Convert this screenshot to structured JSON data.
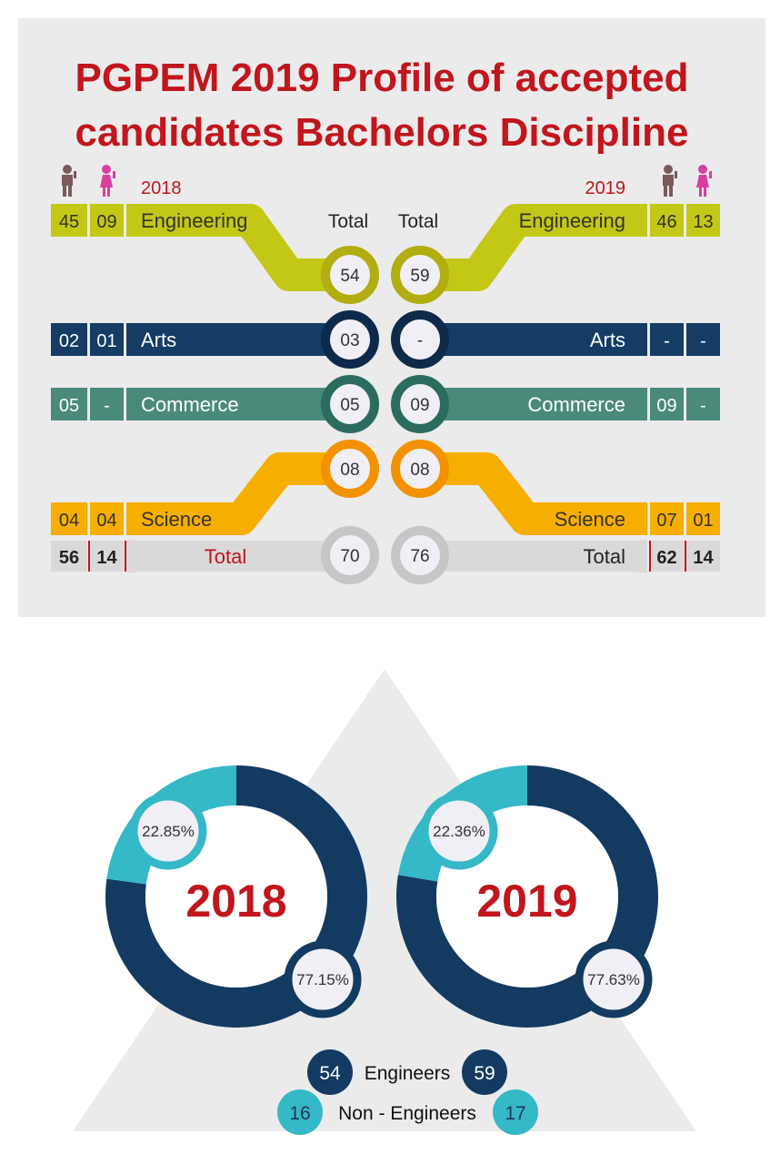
{
  "title_line1": "PGPEM 2019 Profile of accepted",
  "title_line2": "candidates Bachelors Discipline",
  "colors": {
    "title": "#c0161c",
    "engineering": "#c3c716",
    "engineering_ring": "#b2ad10",
    "arts": "#143c64",
    "arts_ring": "#0e2a4a",
    "commerce": "#4a8a7a",
    "commerce_ring": "#2b6c5e",
    "science": "#f6ae00",
    "science_ring": "#f39200",
    "total": "#d9d9d9",
    "total_ring": "#c6c6c6",
    "male_icon": "#7a5a5a",
    "female_icon": "#d63fa0",
    "engineers": "#133b62",
    "non_engineers": "#35b8c8"
  },
  "icons": [
    "male-person-icon",
    "female-person-icon"
  ],
  "chart_data": [
    {
      "type": "table",
      "columns_header": "Total",
      "years": [
        {
          "year": "2018",
          "rows": [
            {
              "discipline": "Engineering",
              "male": "45",
              "female": "09",
              "total": "54"
            },
            {
              "discipline": "Arts",
              "male": "02",
              "female": "01",
              "total": "03"
            },
            {
              "discipline": "Commerce",
              "male": "05",
              "female": "-",
              "total": "05"
            },
            {
              "discipline": "Science",
              "male": "04",
              "female": "04",
              "total": "08"
            },
            {
              "discipline": "Total",
              "male": "56",
              "female": "14",
              "total": "70"
            }
          ]
        },
        {
          "year": "2019",
          "rows": [
            {
              "discipline": "Engineering",
              "male": "46",
              "female": "13",
              "total": "59"
            },
            {
              "discipline": "Arts",
              "male": "-",
              "female": "-",
              "total": "-"
            },
            {
              "discipline": "Commerce",
              "male": "09",
              "female": "-",
              "total": "09"
            },
            {
              "discipline": "Science",
              "male": "07",
              "female": "01",
              "total": "08"
            },
            {
              "discipline": "Total",
              "male": "62",
              "female": "14",
              "total": "76"
            }
          ]
        }
      ]
    },
    {
      "type": "pie",
      "donuts": [
        {
          "label": "2018",
          "slices": [
            {
              "value": 77.15,
              "label": "77.15%"
            },
            {
              "value": 22.85,
              "label": "22.85%"
            }
          ]
        },
        {
          "label": "2019",
          "slices": [
            {
              "value": 77.63,
              "label": "77.63%"
            },
            {
              "value": 22.36,
              "label": "22.36%"
            }
          ]
        }
      ],
      "legend": [
        {
          "name": "Engineers",
          "v2018": "54",
          "v2019": "59"
        },
        {
          "name": "Non - Engineers",
          "v2018": "16",
          "v2019": "17"
        }
      ]
    }
  ]
}
